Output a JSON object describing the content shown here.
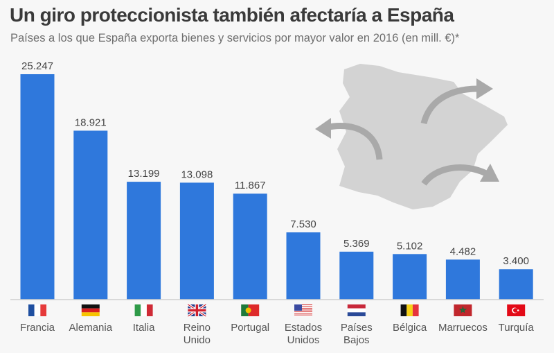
{
  "chart_data": {
    "type": "bar",
    "title": "Un giro proteccionista también afectaría a España",
    "subtitle": "Países a los que España exporta bienes y servicios por mayor valor en 2016 (en mill. €)*",
    "categories": [
      "Francia",
      "Alemania",
      "Italia",
      "Reino Unido",
      "Portugal",
      "Estados Unidos",
      "Países Bajos",
      "Bélgica",
      "Marruecos",
      "Turquía"
    ],
    "values": [
      25247,
      18921,
      13199,
      13098,
      11867,
      7530,
      5369,
      5102,
      4482,
      3400
    ],
    "value_labels": [
      "25.247",
      "18.921",
      "13.199",
      "13.098",
      "11.867",
      "7.530",
      "5.369",
      "5.102",
      "4.482",
      "3.400"
    ],
    "flags": [
      "flag-france",
      "flag-germany",
      "flag-italy",
      "flag-uk",
      "flag-portugal",
      "flag-usa",
      "flag-netherlands",
      "flag-belgium",
      "flag-morocco",
      "flag-turkey"
    ],
    "xlabel": "",
    "ylabel": "",
    "ylim": [
      0,
      25247
    ],
    "grid": false,
    "colors": {
      "bar": "#2f78dc",
      "map": "#d3d3d3",
      "arrow": "#a9a9a9"
    }
  }
}
